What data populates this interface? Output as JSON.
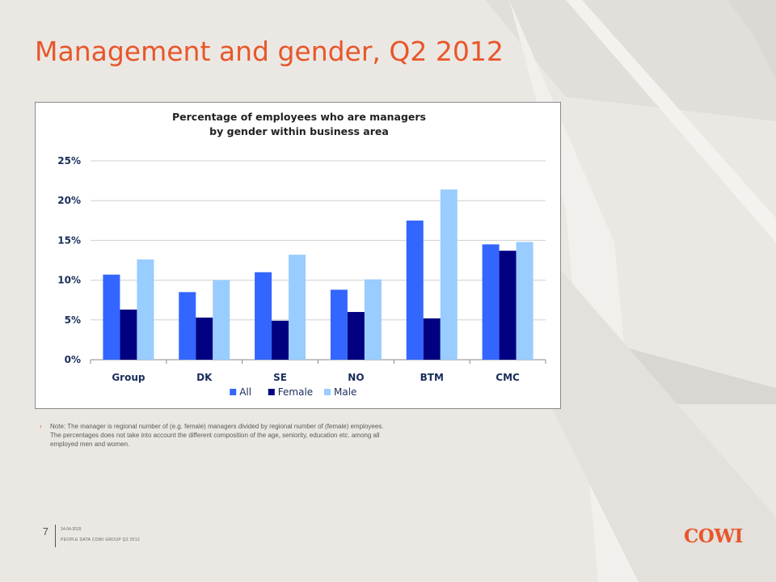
{
  "slide": {
    "title": "Management and gender, Q2 2012",
    "note": "Note: The manager is regional number of (e.g. female) managers divided by regional number of (female) employees. The percentages does not take into account the different composition of the age, seniority, education etc. among all employed men and women.",
    "page_number": "7",
    "footer_date": "14-04-2015",
    "footer_label": "PEOPLE DATA COWI GROUP Q2 2012",
    "logo_text": "COWI",
    "accent_color": "#e8562a"
  },
  "chart_data": {
    "type": "bar",
    "title": "Percentage of employees who are managers",
    "subtitle": "by gender within business area",
    "categories": [
      "Group",
      "DK",
      "SE",
      "NO",
      "BTM",
      "CMC"
    ],
    "series": [
      {
        "name": "All",
        "color": "#3366ff",
        "values": [
          0.107,
          0.085,
          0.11,
          0.088,
          0.175,
          0.145
        ]
      },
      {
        "name": "Female",
        "color": "#000080",
        "values": [
          0.063,
          0.053,
          0.049,
          0.06,
          0.052,
          0.137
        ]
      },
      {
        "name": "Male",
        "color": "#99ccff",
        "values": [
          0.126,
          0.1,
          0.132,
          0.101,
          0.214,
          0.148
        ]
      }
    ],
    "ylim": [
      0,
      0.25
    ],
    "yticks": [
      {
        "value": 0,
        "label": "0%"
      },
      {
        "value": 0.05,
        "label": "5%"
      },
      {
        "value": 0.1,
        "label": "10%"
      },
      {
        "value": 0.15,
        "label": "15%"
      },
      {
        "value": 0.2,
        "label": "20%"
      },
      {
        "value": 0.25,
        "label": "25%"
      }
    ],
    "grid": true,
    "legend_position": "bottom"
  }
}
